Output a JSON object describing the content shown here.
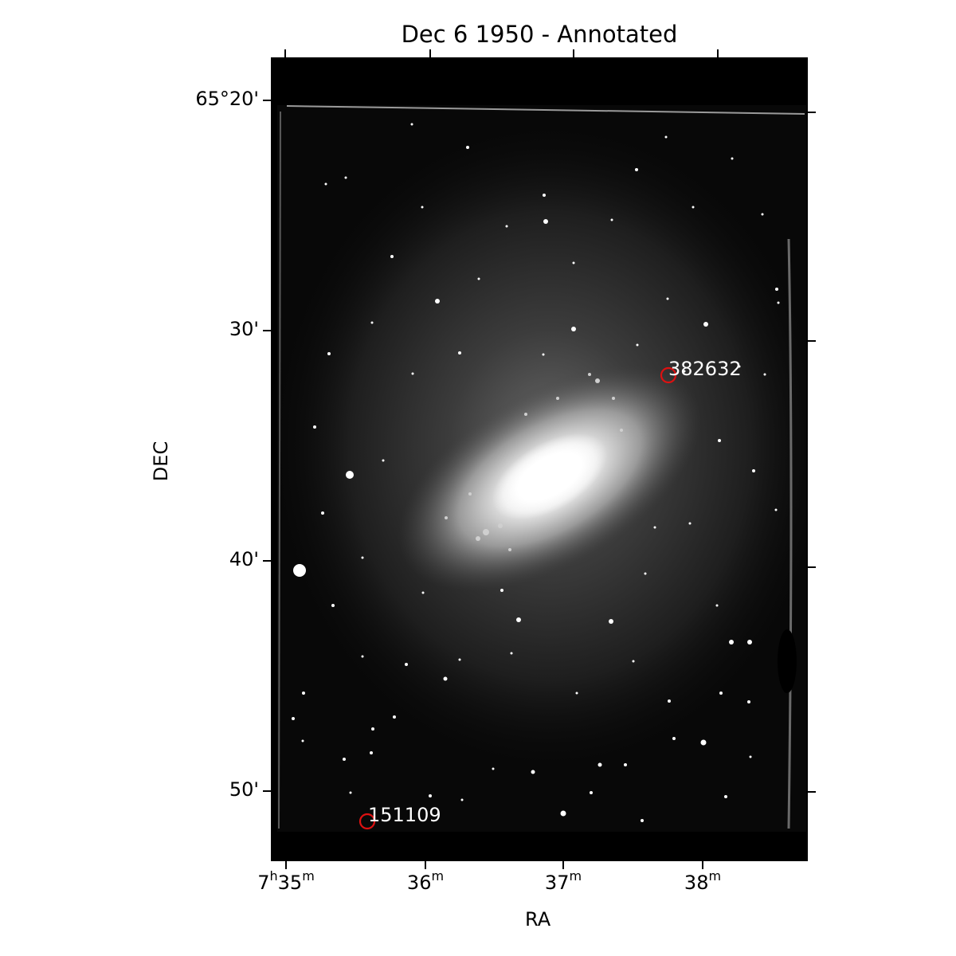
{
  "figure": {
    "title": "Dec 6 1950 - Annotated",
    "xlabel": "RA",
    "ylabel": "DEC"
  },
  "y_ticks": [
    "65°20'",
    "30'",
    "40'",
    "50'"
  ],
  "x_ticks": [
    {
      "h": "7",
      "h_unit": "h",
      "m": "35",
      "m_unit": "m"
    },
    {
      "m": "36",
      "m_unit": "m"
    },
    {
      "m": "37",
      "m_unit": "m"
    },
    {
      "m": "38",
      "m_unit": "m"
    }
  ],
  "annotations": [
    {
      "label": "382632",
      "color": "#dd1111"
    },
    {
      "label": "151109",
      "color": "#dd1111"
    }
  ],
  "image": {
    "subject": "grayscale photographic plate of a spiral galaxy with foreground stars",
    "colormap": "gray"
  }
}
